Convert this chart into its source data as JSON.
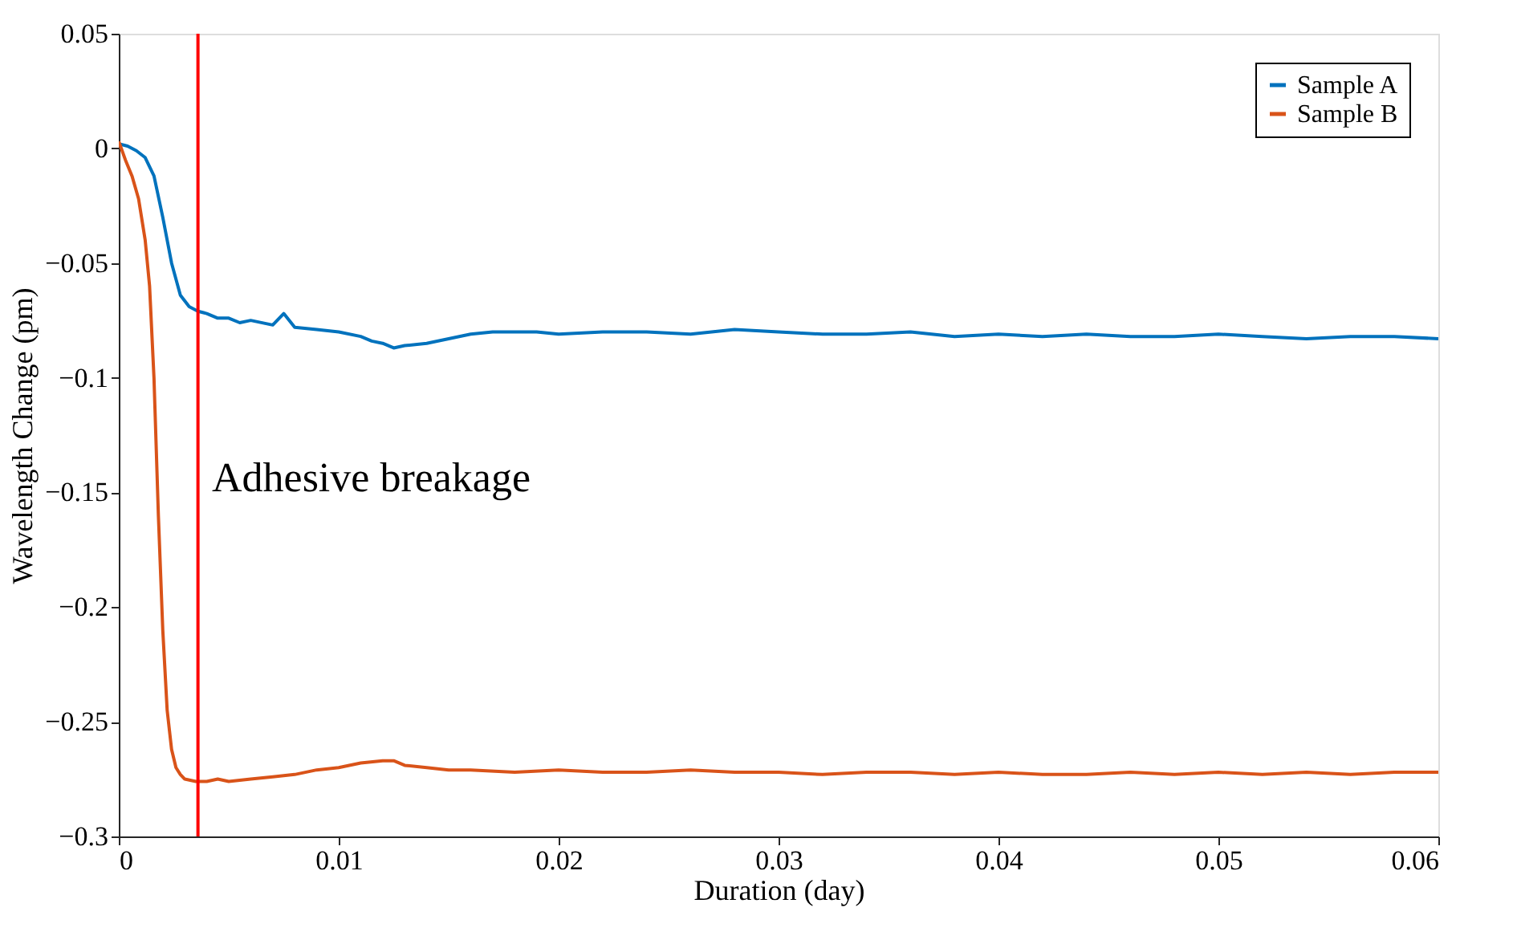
{
  "chart_data": {
    "type": "line",
    "xlabel": "Duration (day)",
    "ylabel": "Wavelength Change (pm)",
    "xlim": [
      0,
      0.06
    ],
    "ylim": [
      -0.3,
      0.05
    ],
    "xticks": [
      0,
      0.01,
      0.02,
      0.03,
      0.04,
      0.05,
      0.06
    ],
    "yticks": [
      -0.3,
      -0.25,
      -0.2,
      -0.15,
      -0.1,
      -0.05,
      0,
      0.05
    ],
    "grid": false,
    "legend": "top right",
    "line_style": "solid",
    "marker": "none",
    "series": [
      {
        "name": "Sample A",
        "color": "#0072bd",
        "x": [
          0,
          0.0004,
          0.0008,
          0.0012,
          0.0016,
          0.002,
          0.0024,
          0.0028,
          0.0032,
          0.0036,
          0.004,
          0.0045,
          0.005,
          0.0055,
          0.006,
          0.007,
          0.0075,
          0.008,
          0.009,
          0.01,
          0.011,
          0.0115,
          0.012,
          0.0125,
          0.013,
          0.014,
          0.015,
          0.016,
          0.017,
          0.018,
          0.019,
          0.02,
          0.022,
          0.024,
          0.026,
          0.028,
          0.03,
          0.032,
          0.034,
          0.036,
          0.038,
          0.04,
          0.042,
          0.044,
          0.046,
          0.048,
          0.05,
          0.052,
          0.054,
          0.056,
          0.058,
          0.06
        ],
        "values": [
          0.002,
          0.001,
          -0.001,
          -0.004,
          -0.012,
          -0.03,
          -0.05,
          -0.064,
          -0.069,
          -0.071,
          -0.072,
          -0.074,
          -0.074,
          -0.076,
          -0.075,
          -0.077,
          -0.072,
          -0.078,
          -0.079,
          -0.08,
          -0.082,
          -0.084,
          -0.085,
          -0.087,
          -0.086,
          -0.085,
          -0.083,
          -0.081,
          -0.08,
          -0.08,
          -0.08,
          -0.081,
          -0.08,
          -0.08,
          -0.081,
          -0.079,
          -0.08,
          -0.081,
          -0.081,
          -0.08,
          -0.082,
          -0.081,
          -0.082,
          -0.081,
          -0.082,
          -0.082,
          -0.081,
          -0.082,
          -0.083,
          -0.082,
          -0.082,
          -0.083
        ]
      },
      {
        "name": "Sample B",
        "color": "#d95319",
        "x": [
          0,
          0.0003,
          0.0006,
          0.0009,
          0.0012,
          0.0014,
          0.0016,
          0.0018,
          0.002,
          0.0022,
          0.0024,
          0.0026,
          0.0028,
          0.003,
          0.0035,
          0.004,
          0.0045,
          0.005,
          0.006,
          0.007,
          0.008,
          0.009,
          0.01,
          0.011,
          0.012,
          0.0125,
          0.013,
          0.014,
          0.015,
          0.016,
          0.018,
          0.02,
          0.022,
          0.024,
          0.026,
          0.028,
          0.03,
          0.032,
          0.034,
          0.036,
          0.038,
          0.04,
          0.042,
          0.044,
          0.046,
          0.048,
          0.05,
          0.052,
          0.054,
          0.056,
          0.058,
          0.06
        ],
        "values": [
          0.003,
          -0.005,
          -0.012,
          -0.022,
          -0.04,
          -0.06,
          -0.1,
          -0.16,
          -0.21,
          -0.245,
          -0.262,
          -0.27,
          -0.273,
          -0.275,
          -0.276,
          -0.276,
          -0.275,
          -0.276,
          -0.275,
          -0.274,
          -0.273,
          -0.271,
          -0.27,
          -0.268,
          -0.267,
          -0.267,
          -0.269,
          -0.27,
          -0.271,
          -0.271,
          -0.272,
          -0.271,
          -0.272,
          -0.272,
          -0.271,
          -0.272,
          -0.272,
          -0.273,
          -0.272,
          -0.272,
          -0.273,
          -0.272,
          -0.273,
          -0.273,
          -0.272,
          -0.273,
          -0.272,
          -0.273,
          -0.272,
          -0.273,
          -0.272,
          -0.272
        ]
      }
    ],
    "ref_lines": [
      {
        "axis": "x",
        "value": 0.0036,
        "color": "#ff0000"
      }
    ],
    "annotations": [
      "Adhesive breakage"
    ]
  }
}
